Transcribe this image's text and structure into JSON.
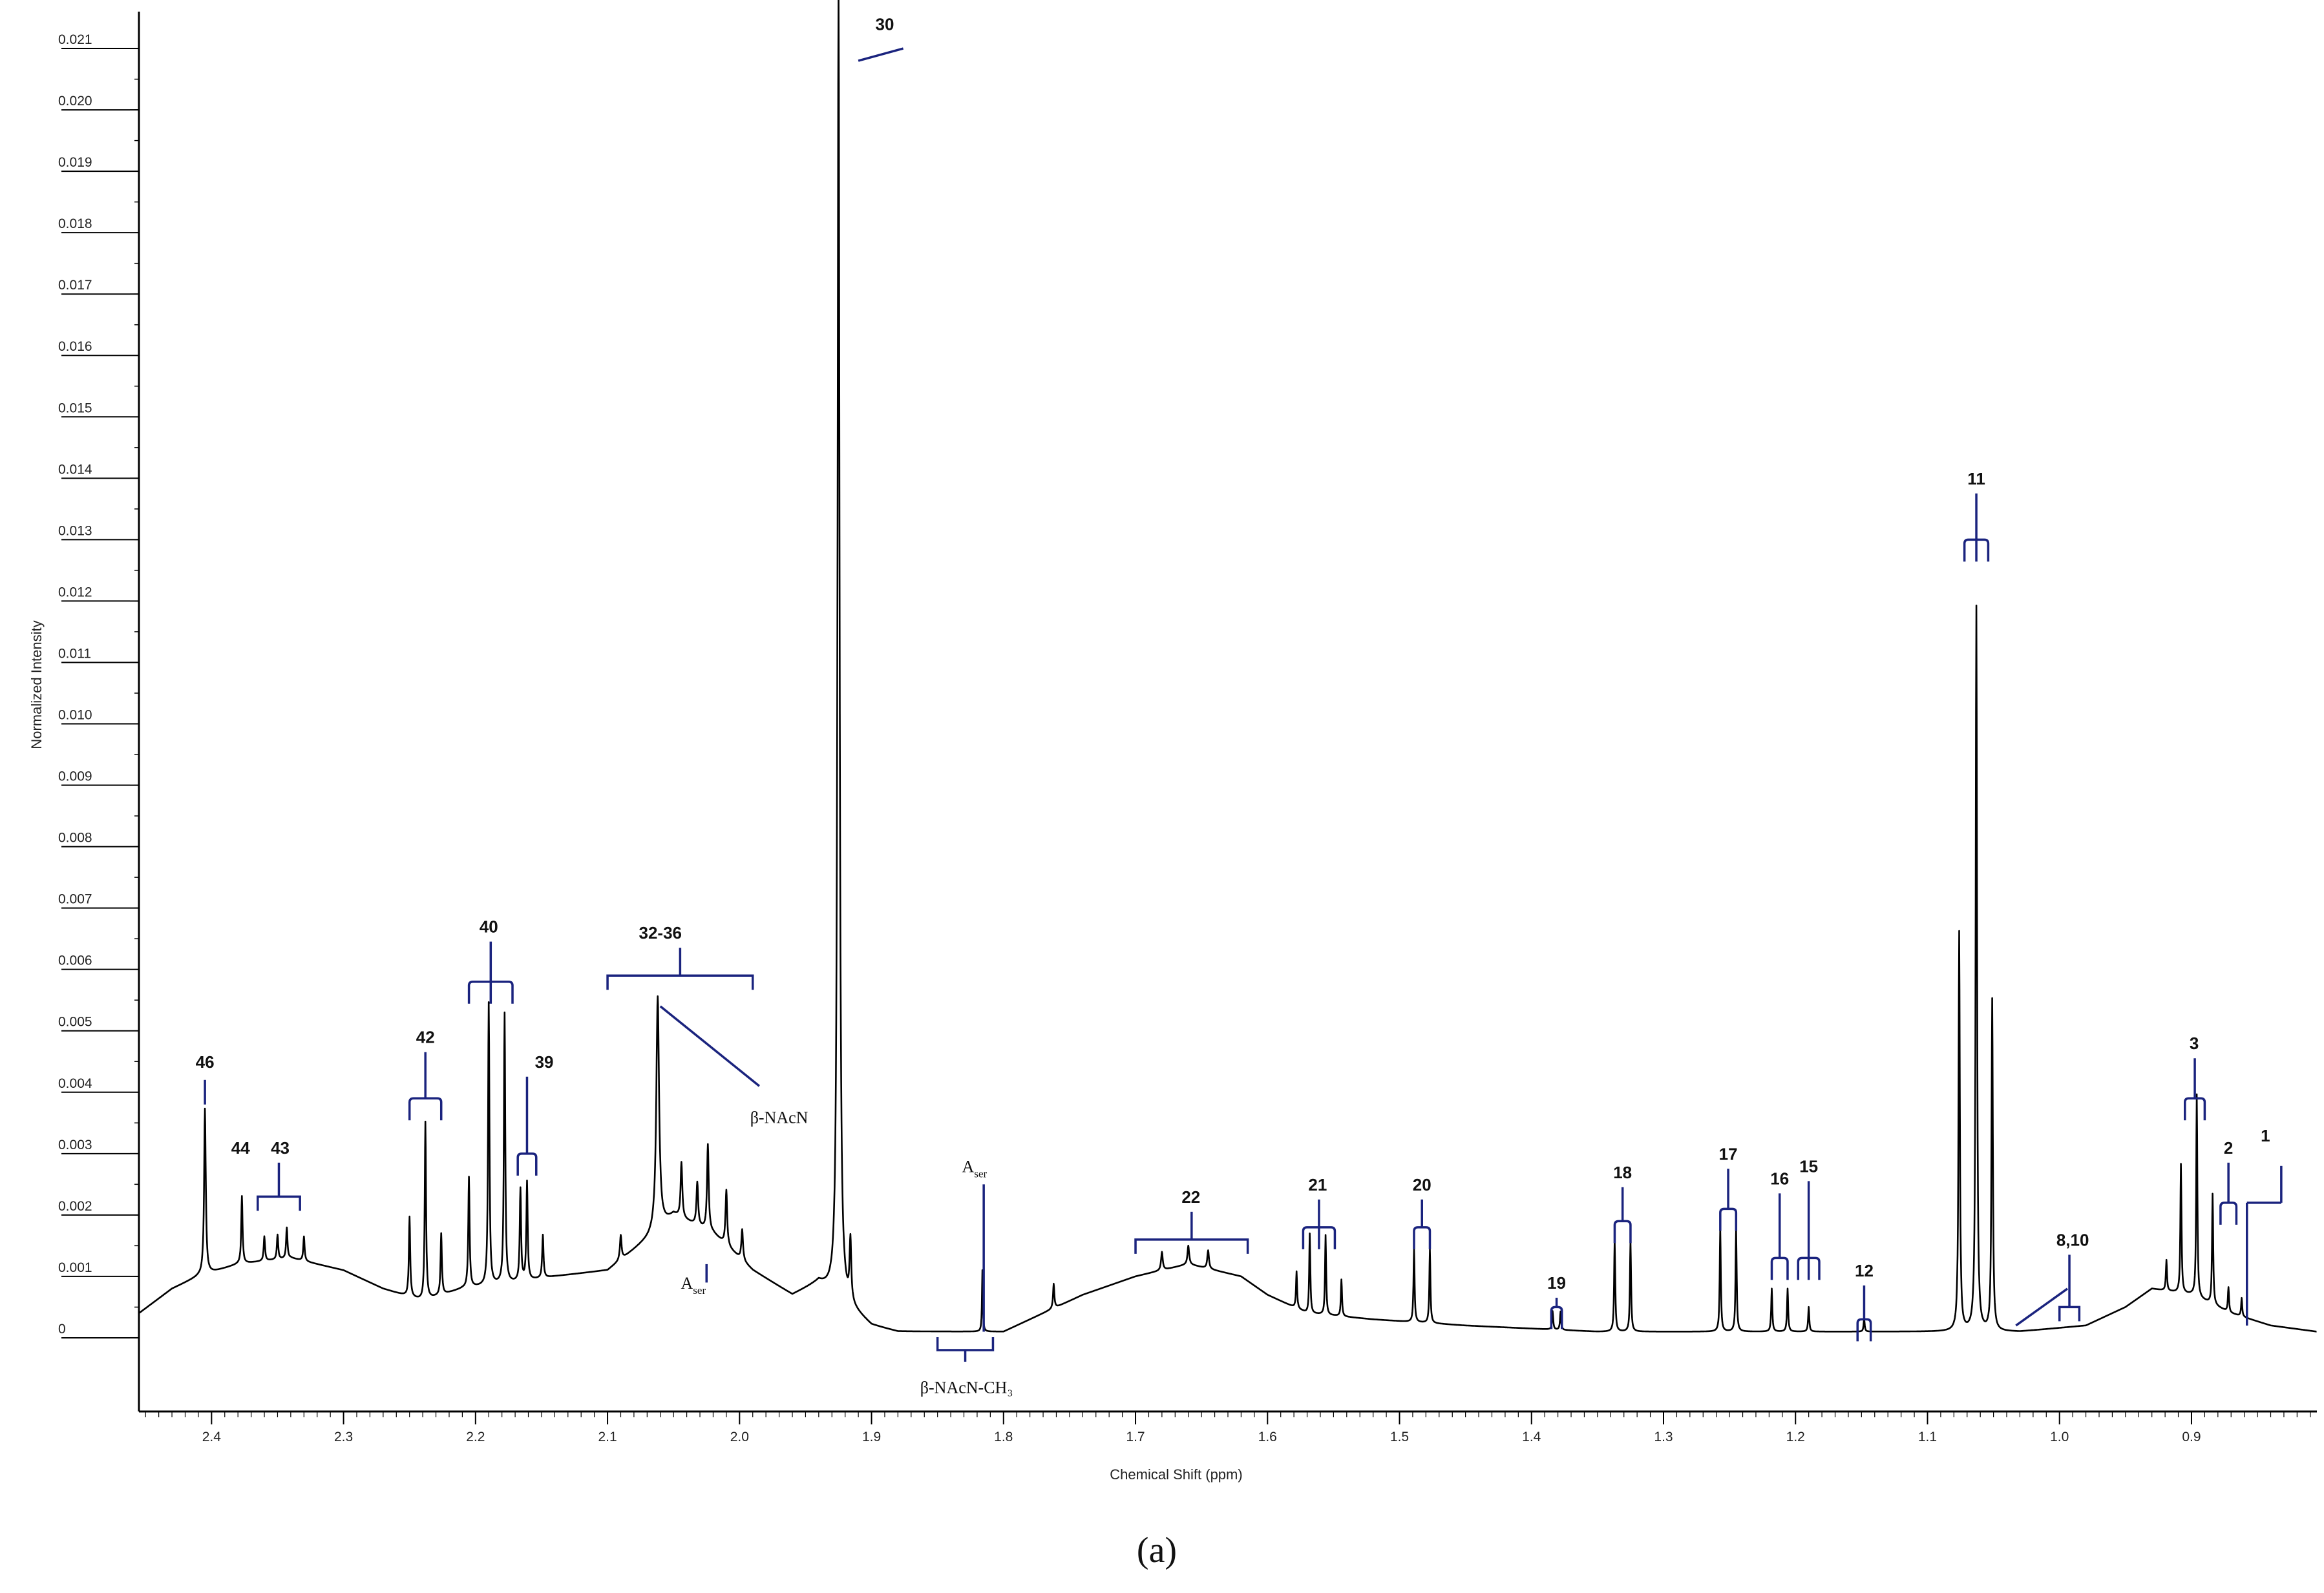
{
  "chart_data": {
    "type": "line",
    "xlabel": "Chemical Shift (ppm)",
    "ylabel": "Normalized Intensity",
    "panel_label": "(a)",
    "xlim": [
      2.455,
      0.805
    ],
    "ylim": [
      -0.0012,
      0.0216
    ],
    "x_ticks": [
      2.4,
      2.3,
      2.2,
      2.1,
      2.0,
      1.9,
      1.8,
      1.7,
      1.6,
      1.5,
      1.4,
      1.3,
      1.2,
      1.1,
      1.0,
      0.9
    ],
    "x_tick_labels": [
      "2.4",
      "2.3",
      "2.2",
      "2.1",
      "2.0",
      "1.9",
      "1.8",
      "1.7",
      "1.6",
      "1.5",
      "1.4",
      "1.3",
      "1.2",
      "1.1",
      "1.0",
      "0.9"
    ],
    "y_ticks": [
      0,
      0.001,
      0.002,
      0.003,
      0.004,
      0.005,
      0.006,
      0.007,
      0.008,
      0.009,
      0.01,
      0.011,
      0.012,
      0.013,
      0.014,
      0.015,
      0.016,
      0.017,
      0.018,
      0.019,
      0.02,
      0.021
    ],
    "y_tick_labels": [
      "0",
      "0.001",
      "0.002",
      "0.003",
      "0.004",
      "0.005",
      "0.006",
      "0.007",
      "0.008",
      "0.009",
      "0.010",
      "0.011",
      "0.012",
      "0.013",
      "0.014",
      "0.015",
      "0.016",
      "0.017",
      "0.018",
      "0.019",
      "0.020",
      "0.021"
    ],
    "spectrum": {
      "baseline": [
        [
          2.455,
          0.0004
        ],
        [
          2.43,
          0.0008
        ],
        [
          2.41,
          0.001
        ],
        [
          2.38,
          0.0012
        ],
        [
          2.34,
          0.0013
        ],
        [
          2.3,
          0.0011
        ],
        [
          2.27,
          0.0008
        ],
        [
          2.24,
          0.0006
        ],
        [
          2.21,
          0.0008
        ],
        [
          2.17,
          0.0009
        ],
        [
          2.14,
          0.001
        ],
        [
          2.1,
          0.0011
        ],
        [
          2.07,
          0.0016
        ],
        [
          2.05,
          0.002
        ],
        [
          2.02,
          0.0017
        ],
        [
          1.99,
          0.0011
        ],
        [
          1.96,
          0.0007
        ],
        [
          1.94,
          0.0009
        ],
        [
          1.9,
          0.0002
        ],
        [
          1.88,
          0.0001
        ],
        [
          1.85,
          0.0001
        ],
        [
          1.8,
          0.0001
        ],
        [
          1.77,
          0.0004
        ],
        [
          1.74,
          0.0007
        ],
        [
          1.7,
          0.001
        ],
        [
          1.66,
          0.0012
        ],
        [
          1.62,
          0.001
        ],
        [
          1.6,
          0.0007
        ],
        [
          1.57,
          0.0004
        ],
        [
          1.52,
          0.0003
        ],
        [
          1.45,
          0.0002
        ],
        [
          1.35,
          0.0001
        ],
        [
          1.25,
          0.0001
        ],
        [
          1.15,
          0.0001
        ],
        [
          1.1,
          0.0001
        ],
        [
          1.03,
          0.0001
        ],
        [
          0.98,
          0.0002
        ],
        [
          0.95,
          0.0005
        ],
        [
          0.93,
          0.0008
        ],
        [
          0.9,
          0.0007
        ],
        [
          0.87,
          0.0004
        ],
        [
          0.84,
          0.0002
        ],
        [
          0.805,
          0.0001
        ]
      ],
      "peaks": [
        [
          2.405,
          0.0027,
          0.0015
        ],
        [
          2.377,
          0.0011,
          0.0012
        ],
        [
          2.36,
          0.0004,
          0.0012
        ],
        [
          2.35,
          0.0004,
          0.0012
        ],
        [
          2.343,
          0.0005,
          0.0012
        ],
        [
          2.33,
          0.0004,
          0.0012
        ],
        [
          2.25,
          0.0013,
          0.0012
        ],
        [
          2.238,
          0.0029,
          0.0012
        ],
        [
          2.226,
          0.001,
          0.0012
        ],
        [
          2.205,
          0.0018,
          0.0012
        ],
        [
          2.19,
          0.0046,
          0.0012
        ],
        [
          2.178,
          0.0044,
          0.0012
        ],
        [
          2.166,
          0.0015,
          0.0012
        ],
        [
          2.161,
          0.0016,
          0.0012
        ],
        [
          2.149,
          0.0007,
          0.0012
        ],
        [
          2.09,
          0.0004,
          0.0015
        ],
        [
          2.062,
          0.0038,
          0.0025
        ],
        [
          2.044,
          0.0009,
          0.0015
        ],
        [
          2.032,
          0.0007,
          0.0015
        ],
        [
          2.024,
          0.0014,
          0.0015
        ],
        [
          2.01,
          0.0009,
          0.0015
        ],
        [
          1.998,
          0.0005,
          0.0015
        ],
        [
          1.925,
          0.0213,
          0.0018
        ],
        [
          1.916,
          0.001,
          0.0015
        ],
        [
          1.816,
          0.001,
          0.0008
        ],
        [
          1.762,
          0.0004,
          0.0012
        ],
        [
          1.68,
          0.0003,
          0.0015
        ],
        [
          1.66,
          0.0003,
          0.0015
        ],
        [
          1.645,
          0.0003,
          0.0015
        ],
        [
          1.578,
          0.0006,
          0.001
        ],
        [
          1.568,
          0.0013,
          0.001
        ],
        [
          1.556,
          0.0013,
          0.001
        ],
        [
          1.544,
          0.0006,
          0.001
        ],
        [
          1.489,
          0.0012,
          0.001
        ],
        [
          1.477,
          0.0012,
          0.001
        ],
        [
          1.384,
          0.0003,
          0.001
        ],
        [
          1.378,
          0.0003,
          0.001
        ],
        [
          1.337,
          0.0015,
          0.001
        ],
        [
          1.325,
          0.0015,
          0.001
        ],
        [
          1.257,
          0.0017,
          0.001
        ],
        [
          1.245,
          0.0017,
          0.001
        ],
        [
          1.218,
          0.0007,
          0.001
        ],
        [
          1.206,
          0.0007,
          0.001
        ],
        [
          1.19,
          0.0004,
          0.001
        ],
        [
          1.148,
          0.0002,
          0.001
        ],
        [
          1.076,
          0.0065,
          0.0012
        ],
        [
          1.063,
          0.0118,
          0.0012
        ],
        [
          1.051,
          0.0054,
          0.0012
        ],
        [
          0.919,
          0.0005,
          0.001
        ],
        [
          0.908,
          0.0021,
          0.001
        ],
        [
          0.896,
          0.0033,
          0.001
        ],
        [
          0.884,
          0.0018,
          0.001
        ],
        [
          0.872,
          0.0004,
          0.001
        ],
        [
          0.862,
          0.0003,
          0.001
        ]
      ]
    },
    "annotations": [
      {
        "label": "46",
        "x": 2.405,
        "y_label": 0.0044,
        "bracket": "tick",
        "tick_x": 2.405,
        "tick_y": [
          0.0038,
          0.0042
        ]
      },
      {
        "label": "44",
        "x": 2.378,
        "y_label": 0.003,
        "bracket": "none"
      },
      {
        "label": "43",
        "x": 2.348,
        "y_label": 0.003,
        "bracket": "wide",
        "x1": 2.365,
        "x2": 2.333,
        "y": 0.0023
      },
      {
        "label": "42",
        "x": 2.238,
        "y_label": 0.0048,
        "bracket": "curly",
        "x1": 2.25,
        "x2": 2.226,
        "y": 0.0039
      },
      {
        "label": "40",
        "x": 2.19,
        "y_label": 0.0066,
        "bracket": "curly3",
        "x1": 2.205,
        "x2": 2.172,
        "y": 0.0058
      },
      {
        "label": "39",
        "x": 2.148,
        "y_label": 0.0044,
        "bracket": "curly",
        "x1": 2.168,
        "x2": 2.154,
        "y": 0.003
      },
      {
        "label": "32-36",
        "x": 2.06,
        "y_label": 0.0065,
        "bracket": "wide",
        "x1": 2.1,
        "x2": 1.99,
        "y": 0.0059
      },
      {
        "label": "30",
        "x": 1.89,
        "y_label": 0.0213,
        "bracket": "none"
      },
      {
        "label": "22",
        "x": 1.658,
        "y_label": 0.0022,
        "bracket": "wide",
        "x1": 1.7,
        "x2": 1.615,
        "y": 0.0016
      },
      {
        "label": "21",
        "x": 1.562,
        "y_label": 0.0024,
        "bracket": "curly3",
        "x1": 1.573,
        "x2": 1.549,
        "y": 0.0018
      },
      {
        "label": "20",
        "x": 1.483,
        "y_label": 0.0024,
        "bracket": "curly",
        "x1": 1.489,
        "x2": 1.477,
        "y": 0.0018
      },
      {
        "label": "19",
        "x": 1.381,
        "y_label": 0.0008,
        "bracket": "curly",
        "x1": 1.385,
        "x2": 1.377,
        "y": 0.0005
      },
      {
        "label": "18",
        "x": 1.331,
        "y_label": 0.0026,
        "bracket": "curly",
        "x1": 1.337,
        "x2": 1.325,
        "y": 0.0019
      },
      {
        "label": "17",
        "x": 1.251,
        "y_label": 0.0029,
        "bracket": "curly",
        "x1": 1.257,
        "x2": 1.245,
        "y": 0.0021
      },
      {
        "label": "16",
        "x": 1.212,
        "y_label": 0.0025,
        "bracket": "curly",
        "x1": 1.218,
        "x2": 1.206,
        "y": 0.0013
      },
      {
        "label": "15",
        "x": 1.19,
        "y_label": 0.0027,
        "bracket": "curly3",
        "x1": 1.198,
        "x2": 1.182,
        "y": 0.0013
      },
      {
        "label": "12",
        "x": 1.148,
        "y_label": 0.001,
        "bracket": "curly",
        "x1": 1.153,
        "x2": 1.143,
        "y": 0.0003
      },
      {
        "label": "11",
        "x": 1.063,
        "y_label": 0.0139,
        "bracket": "curly3",
        "x1": 1.072,
        "x2": 1.054,
        "y": 0.013
      },
      {
        "label": "8,10",
        "x": 0.99,
        "y_label": 0.0015,
        "bracket": "wide",
        "x1": 1.0,
        "x2": 0.985,
        "y": 0.0005
      },
      {
        "label": "3",
        "x": 0.898,
        "y_label": 0.0047,
        "bracket": "curly",
        "x1": 0.905,
        "x2": 0.89,
        "y": 0.0039
      },
      {
        "label": "2",
        "x": 0.872,
        "y_label": 0.003,
        "bracket": "curly",
        "x1": 0.878,
        "x2": 0.866,
        "y": 0.0022
      },
      {
        "label": "1",
        "x": 0.844,
        "y_label": 0.0032,
        "bracket": "none"
      }
    ],
    "text_annotations": [
      {
        "text": "β-NAcN",
        "x": 1.97,
        "y": 0.0035
      },
      {
        "text": "β-NAcN-CH₃",
        "x": 1.828,
        "y": -0.0009
      },
      {
        "text": "A",
        "sub": "ser",
        "x": 1.822,
        "y": 0.0027
      },
      {
        "text": "A",
        "sub": "ser",
        "x": 2.035,
        "y": 0.0008
      }
    ],
    "colors": {
      "spectrum": "#000000",
      "brackets": "#1a237e",
      "axis": "#000000"
    }
  }
}
